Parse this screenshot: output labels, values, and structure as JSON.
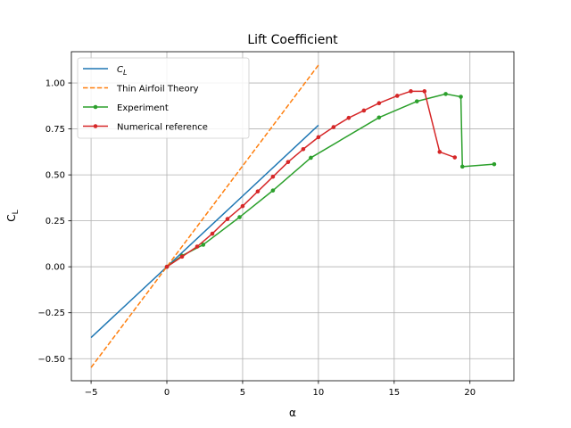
{
  "chart_data": {
    "type": "line",
    "title": "Lift Coefficient",
    "xlabel": "α",
    "ylabel": "C",
    "ylabel_sub": "L",
    "xlim": [
      -6.3,
      22.9
    ],
    "ylim": [
      -0.62,
      1.17
    ],
    "grid": true,
    "legend_position": "upper-left",
    "x_ticks": [
      -5,
      0,
      5,
      10,
      15,
      20
    ],
    "x_tick_labels": [
      "−5",
      "0",
      "5",
      "10",
      "15",
      "20"
    ],
    "y_ticks": [
      -0.5,
      -0.25,
      0,
      0.25,
      0.5,
      0.75,
      1.0
    ],
    "y_tick_labels": [
      "−0.50",
      "−0.25",
      "0.00",
      "0.25",
      "0.50",
      "0.75",
      "1.00"
    ],
    "series": [
      {
        "name": "C",
        "name_sub": "L",
        "color": "#1f77b4",
        "style": "solid",
        "marker": false,
        "x": [
          -5,
          10
        ],
        "y": [
          -0.385,
          0.77
        ]
      },
      {
        "name": "Thin Airfoil Theory",
        "color": "#ff7f0e",
        "style": "dashed",
        "marker": false,
        "x": [
          -5,
          10
        ],
        "y": [
          -0.548,
          1.097
        ]
      },
      {
        "name": "Experiment",
        "color": "#2ca02c",
        "style": "solid",
        "marker": true,
        "x": [
          0,
          1.0,
          2.4,
          4.8,
          7.0,
          9.5,
          14.0,
          16.5,
          18.4,
          19.4,
          19.5,
          21.6
        ],
        "y": [
          0.0,
          0.06,
          0.12,
          0.27,
          0.415,
          0.593,
          0.812,
          0.9,
          0.94,
          0.925,
          0.545,
          0.558
        ]
      },
      {
        "name": "Numerical reference",
        "color": "#d62728",
        "style": "solid",
        "marker": true,
        "x": [
          0,
          1,
          2,
          3,
          4,
          5,
          6,
          7,
          8,
          9,
          10,
          11,
          12,
          13,
          14,
          15.2,
          16.1,
          17.0,
          18.0,
          19.0
        ],
        "y": [
          0.0,
          0.055,
          0.11,
          0.18,
          0.26,
          0.33,
          0.41,
          0.49,
          0.57,
          0.64,
          0.705,
          0.76,
          0.81,
          0.85,
          0.89,
          0.93,
          0.955,
          0.955,
          0.625,
          0.595
        ]
      }
    ]
  }
}
